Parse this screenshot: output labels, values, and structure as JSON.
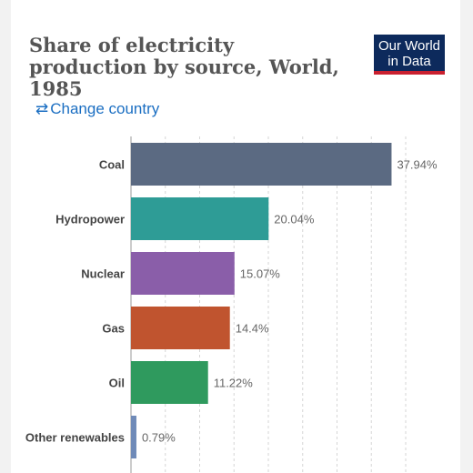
{
  "header": {
    "title": "Share of electricity production by source, World, 1985",
    "logo_line1": "Our World",
    "logo_line2": "in Data",
    "change_country_label": "Change country",
    "change_country_icon": "swap-arrows-icon"
  },
  "chart_data": {
    "type": "bar",
    "orientation": "horizontal",
    "title": "Share of electricity production by source, World, 1985",
    "categories": [
      "Coal",
      "Hydropower",
      "Nuclear",
      "Gas",
      "Oil",
      "Other renewables"
    ],
    "values": [
      37.94,
      20.04,
      15.07,
      14.4,
      11.22,
      0.79
    ],
    "value_labels": [
      "37.94%",
      "20.04%",
      "15.07%",
      "14.4%",
      "11.22%",
      "0.79%"
    ],
    "colors": [
      "#5b6a82",
      "#2e9c96",
      "#8a5ea9",
      "#c0542f",
      "#2f9a5e",
      "#6f8ab8"
    ],
    "xlim": [
      0,
      40
    ],
    "grid": true,
    "legend": "none"
  }
}
